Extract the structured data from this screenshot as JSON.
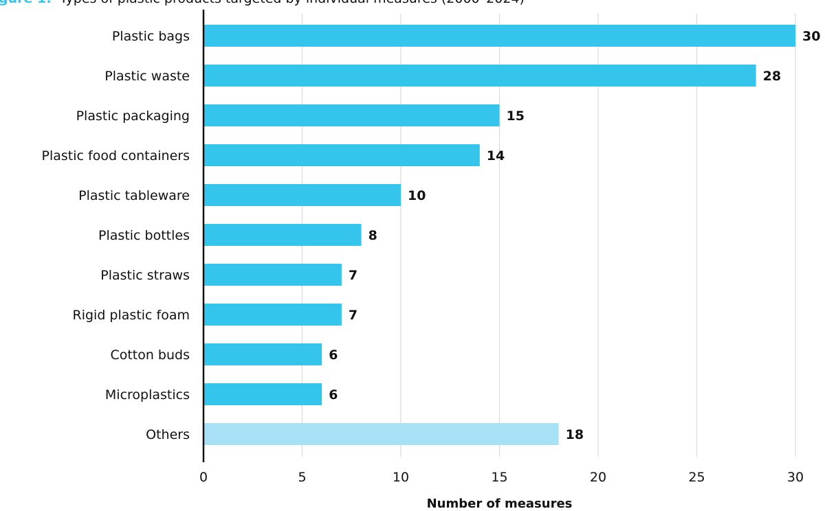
{
  "chart_data": {
    "type": "bar",
    "orientation": "horizontal",
    "title": {
      "prefix": "gure 1:",
      "text": "Types of plastic products targeted by individual measures (2000–2024)"
    },
    "categories": [
      "Plastic bags",
      "Plastic waste",
      "Plastic packaging",
      "Plastic food containers",
      "Plastic tableware",
      "Plastic bottles",
      "Plastic straws",
      "Rigid plastic foam",
      "Cotton buds",
      "Microplastics",
      "Others"
    ],
    "values": [
      30,
      28,
      15,
      14,
      10,
      8,
      7,
      7,
      6,
      6,
      18
    ],
    "xlabel": "Number of measures",
    "ylabel": "",
    "xlim": [
      0,
      30
    ],
    "xticks": [
      0,
      5,
      10,
      15,
      20,
      25,
      30
    ],
    "grid": true,
    "colors": {
      "bar": "#35C4EC",
      "bar_others": "#A8E0F5",
      "grid": "#D9D9D9",
      "axis": "#111111",
      "title_prefix": "#35C4EC"
    }
  }
}
